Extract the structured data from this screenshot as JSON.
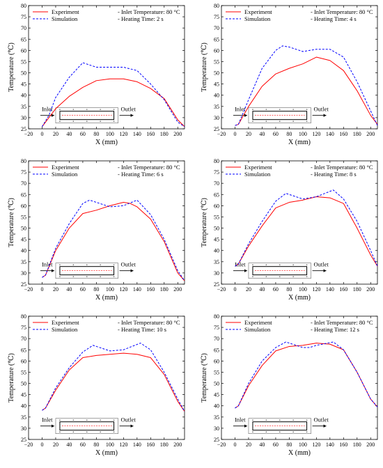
{
  "chart_data": [
    {
      "type": "line",
      "legend": {
        "placement": "top-left",
        "entries": [
          "Experiment",
          "Simulation"
        ]
      },
      "annotations": [
        "- Inlet Temperature: 80 °C",
        "- Heating Time: 2 s"
      ],
      "inset": {
        "inlet_label": "Inlet",
        "outlet_label": "Outlet"
      },
      "xlabel": "X (mm)",
      "ylabel": "Temperature (℃)",
      "xlim": [
        -20,
        210
      ],
      "ylim": [
        25,
        80
      ],
      "xticks": [
        -20,
        0,
        20,
        40,
        60,
        80,
        100,
        120,
        140,
        160,
        180,
        200
      ],
      "yticks": [
        25,
        30,
        35,
        40,
        45,
        50,
        55,
        60,
        65,
        70,
        75,
        80
      ],
      "series": [
        {
          "name": "Experiment",
          "color": "#ff0000",
          "dash": "solid",
          "x": [
            0,
            20,
            40,
            60,
            80,
            100,
            120,
            140,
            160,
            180,
            200,
            210
          ],
          "y": [
            26,
            34,
            39.5,
            43.5,
            46.5,
            47.3,
            47.3,
            46,
            43,
            38.5,
            29,
            26
          ]
        },
        {
          "name": "Simulation",
          "color": "#0000ff",
          "dash": "dashed",
          "x": [
            0,
            10,
            20,
            40,
            60,
            80,
            100,
            120,
            140,
            160,
            180,
            200,
            210
          ],
          "y": [
            26,
            31,
            39,
            48,
            54.5,
            52.5,
            52.5,
            52.5,
            51,
            45,
            38,
            28,
            26
          ]
        }
      ]
    },
    {
      "type": "line",
      "legend": {
        "placement": "top-left",
        "entries": [
          "Experiment",
          "Simulation"
        ]
      },
      "annotations": [
        "- Inlet Temperature: 80 °C",
        "- Heating Time: 4 s"
      ],
      "inset": {
        "inlet_label": "Inlet",
        "outlet_label": "Outlet"
      },
      "xlabel": "X (mm)",
      "ylabel": "Temperature (℃)",
      "xlim": [
        -20,
        210
      ],
      "ylim": [
        25,
        80
      ],
      "xticks": [
        -20,
        0,
        20,
        40,
        60,
        80,
        100,
        120,
        140,
        160,
        180,
        200
      ],
      "yticks": [
        25,
        30,
        35,
        40,
        45,
        50,
        55,
        60,
        65,
        70,
        75,
        80
      ],
      "series": [
        {
          "name": "Experiment",
          "color": "#ff0000",
          "dash": "solid",
          "x": [
            0,
            5,
            20,
            40,
            60,
            80,
            100,
            120,
            140,
            160,
            180,
            200,
            210
          ],
          "y": [
            26.5,
            27,
            35,
            44,
            49.5,
            52,
            54,
            57,
            55.5,
            51,
            42,
            31,
            27
          ]
        },
        {
          "name": "Simulation",
          "color": "#0000ff",
          "dash": "dashed",
          "x": [
            0,
            5,
            20,
            40,
            60,
            70,
            80,
            100,
            120,
            140,
            160,
            180,
            200,
            210
          ],
          "y": [
            26.5,
            27,
            38,
            52,
            60,
            62,
            61.5,
            59.5,
            60.5,
            60.5,
            57,
            46,
            33,
            26.5
          ]
        }
      ]
    },
    {
      "type": "line",
      "legend": {
        "placement": "top-left",
        "entries": [
          "Experiment",
          "Simulation"
        ]
      },
      "annotations": [
        "- Inlet Temperature: 80 °C",
        "- Heating Time: 6 s"
      ],
      "inset": {
        "inlet_label": "Inlet",
        "outlet_label": "Outlet"
      },
      "xlabel": "X (mm)",
      "ylabel": "Temperature (℃)",
      "xlim": [
        -20,
        210
      ],
      "ylim": [
        25,
        80
      ],
      "xticks": [
        -20,
        0,
        20,
        40,
        60,
        80,
        100,
        120,
        140,
        160,
        180,
        200
      ],
      "yticks": [
        25,
        30,
        35,
        40,
        45,
        50,
        55,
        60,
        65,
        70,
        75,
        80
      ],
      "series": [
        {
          "name": "Experiment",
          "color": "#ff0000",
          "dash": "solid",
          "x": [
            0,
            5,
            20,
            40,
            60,
            80,
            100,
            120,
            130,
            140,
            160,
            180,
            200,
            210
          ],
          "y": [
            28,
            29,
            40,
            50,
            56.5,
            58,
            60,
            61.5,
            61,
            59.5,
            54,
            44,
            30,
            26.5
          ]
        },
        {
          "name": "Simulation",
          "color": "#0000ff",
          "dash": "dashed",
          "x": [
            0,
            5,
            20,
            40,
            60,
            70,
            80,
            100,
            120,
            140,
            160,
            180,
            200,
            210
          ],
          "y": [
            28,
            29,
            41,
            52,
            61,
            62.5,
            61.5,
            59.5,
            60,
            62.5,
            56,
            45,
            31,
            26.5
          ]
        }
      ]
    },
    {
      "type": "line",
      "legend": {
        "placement": "top-left",
        "entries": [
          "Experiment",
          "Simulation"
        ]
      },
      "annotations": [
        "- Inlet Temperature: 80 °C",
        "- Heating Time: 8 s"
      ],
      "inset": {
        "inlet_label": "Inlet",
        "outlet_label": "Outlet"
      },
      "xlabel": "X (mm)",
      "ylabel": "Temperature (℃)",
      "xlim": [
        -20,
        210
      ],
      "ylim": [
        25,
        80
      ],
      "xticks": [
        -20,
        0,
        20,
        40,
        60,
        80,
        100,
        120,
        140,
        160,
        180,
        200
      ],
      "yticks": [
        25,
        30,
        35,
        40,
        45,
        50,
        55,
        60,
        65,
        70,
        75,
        80
      ],
      "series": [
        {
          "name": "Experiment",
          "color": "#ff0000",
          "dash": "solid",
          "x": [
            0,
            5,
            20,
            40,
            60,
            80,
            100,
            120,
            140,
            160,
            180,
            200,
            210
          ],
          "y": [
            33,
            34,
            42,
            51,
            59,
            61.5,
            62.5,
            64,
            63.5,
            61,
            50,
            38,
            33
          ]
        },
        {
          "name": "Simulation",
          "color": "#0000ff",
          "dash": "dashed",
          "x": [
            0,
            5,
            20,
            40,
            60,
            75,
            80,
            100,
            120,
            145,
            160,
            180,
            200,
            210
          ],
          "y": [
            33,
            34,
            43,
            53,
            62,
            65.5,
            65,
            63,
            64,
            67,
            63,
            53,
            40,
            33
          ]
        }
      ]
    },
    {
      "type": "line",
      "legend": {
        "placement": "top-left",
        "entries": [
          "Experiment",
          "Simulation"
        ]
      },
      "annotations": [
        "- Inlet Temperature: 80 °C",
        "- Heating Time: 10 s"
      ],
      "inset": {
        "inlet_label": "Inlet",
        "outlet_label": "Outlet"
      },
      "xlabel": "X (mm)",
      "ylabel": "Temperature (℃)",
      "xlim": [
        -20,
        210
      ],
      "ylim": [
        25,
        80
      ],
      "xticks": [
        -20,
        0,
        20,
        40,
        60,
        80,
        100,
        120,
        140,
        160,
        180,
        200
      ],
      "yticks": [
        25,
        30,
        35,
        40,
        45,
        50,
        55,
        60,
        65,
        70,
        75,
        80
      ],
      "series": [
        {
          "name": "Experiment",
          "color": "#ff0000",
          "dash": "solid",
          "x": [
            0,
            5,
            20,
            40,
            60,
            80,
            100,
            120,
            140,
            160,
            180,
            200,
            210
          ],
          "y": [
            38,
            39,
            47,
            56,
            61.5,
            62.5,
            63,
            63.5,
            63,
            61.5,
            54,
            42,
            37.5
          ]
        },
        {
          "name": "Simulation",
          "color": "#0000ff",
          "dash": "dashed",
          "x": [
            0,
            5,
            20,
            40,
            60,
            75,
            80,
            100,
            120,
            145,
            160,
            180,
            200,
            210
          ],
          "y": [
            38,
            39,
            48,
            57,
            64,
            67,
            66.5,
            64.5,
            65,
            68,
            65,
            55,
            43,
            37.5
          ]
        }
      ]
    },
    {
      "type": "line",
      "legend": {
        "placement": "top-left",
        "entries": [
          "Experiment",
          "Simulation"
        ]
      },
      "annotations": [
        "- Inlet Temperature: 80 °C",
        "- Heating Time: 12 s"
      ],
      "inset": {
        "inlet_label": "Inlet",
        "outlet_label": "Outlet"
      },
      "xlabel": "X (mm)",
      "ylabel": "Temperature (℃)",
      "xlim": [
        -20,
        210
      ],
      "ylim": [
        25,
        80
      ],
      "xticks": [
        -20,
        0,
        20,
        40,
        60,
        80,
        100,
        120,
        140,
        160,
        180,
        200
      ],
      "yticks": [
        25,
        30,
        35,
        40,
        45,
        50,
        55,
        60,
        65,
        70,
        75,
        80
      ],
      "series": [
        {
          "name": "Experiment",
          "color": "#ff0000",
          "dash": "solid",
          "x": [
            0,
            5,
            20,
            40,
            60,
            80,
            100,
            120,
            140,
            160,
            180,
            200,
            210
          ],
          "y": [
            39,
            40,
            49,
            58,
            64.5,
            66.5,
            67,
            68,
            67.5,
            65,
            55,
            43,
            39.5
          ]
        },
        {
          "name": "Simulation",
          "color": "#0000ff",
          "dash": "dashed",
          "x": [
            0,
            5,
            20,
            40,
            60,
            75,
            80,
            100,
            110,
            120,
            145,
            160,
            180,
            200,
            210
          ],
          "y": [
            39,
            40,
            50,
            60,
            66,
            68.5,
            68,
            66,
            66,
            67,
            68.5,
            65,
            55,
            43,
            39.5
          ]
        }
      ]
    }
  ]
}
